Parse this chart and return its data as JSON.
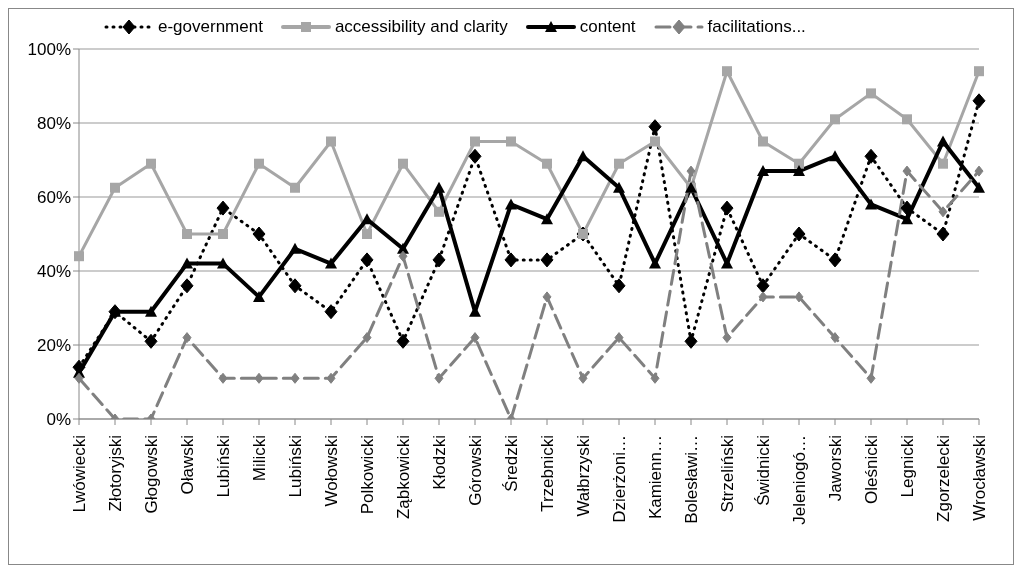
{
  "chart_data": {
    "type": "line",
    "categories": [
      "Lwówiecki",
      "Złotoryjski",
      "Głogowski",
      "Oławski",
      "Lubiński",
      "Milicki",
      "Lubiński",
      "Wołowski",
      "Polkowicki",
      "Ząbkowicki",
      "Kłodzki",
      "Górowski",
      "Średzki",
      "Trzebnicki",
      "Wałbrzyski",
      "Dzierżoni…",
      "Kamienn…",
      "Bolesławi…",
      "Strzeliński",
      "Świdnicki",
      "Jeleniogó…",
      "Jaworski",
      "Oleśnicki",
      "Legnicki",
      "Zgorzelecki",
      "Wrocławski"
    ],
    "series": [
      {
        "name": "e-government",
        "color": "#000000",
        "marker": "diamond",
        "line_style": "dotted",
        "values": [
          14,
          29,
          21,
          36,
          57,
          50,
          36,
          29,
          43,
          21,
          43,
          71,
          43,
          43,
          50,
          36,
          79,
          21,
          57,
          36,
          50,
          43,
          71,
          57,
          50,
          86
        ]
      },
      {
        "name": "accessibility and clarity",
        "color": "#a6a6a6",
        "marker": "square",
        "line_style": "solid",
        "values": [
          44,
          62.5,
          69,
          50,
          50,
          69,
          62.5,
          75,
          50,
          69,
          56,
          75,
          75,
          69,
          50,
          69,
          75,
          62.5,
          94,
          75,
          69,
          81,
          88,
          81,
          69,
          94
        ]
      },
      {
        "name": "content",
        "color": "#000000",
        "marker": "triangle",
        "line_style": "solid",
        "values": [
          12.5,
          29,
          29,
          42,
          42,
          33,
          46,
          42,
          54,
          46,
          62.5,
          29,
          58,
          54,
          71,
          62.5,
          42,
          62.5,
          42,
          67,
          67,
          71,
          58,
          54,
          75,
          62.5
        ]
      },
      {
        "name": "facilitations...",
        "color": "#808080",
        "marker": "diamond",
        "line_style": "dashed",
        "values": [
          11,
          0,
          0,
          22,
          11,
          11,
          11,
          11,
          22,
          44,
          11,
          22,
          0,
          33,
          11,
          22,
          11,
          67,
          22,
          33,
          33,
          22,
          11,
          67,
          56,
          67
        ]
      }
    ],
    "ylim": [
      0,
      100
    ],
    "yticks": [
      {
        "value": 0,
        "label": "0%"
      },
      {
        "value": 20,
        "label": "20%"
      },
      {
        "value": 40,
        "label": "40%"
      },
      {
        "value": 60,
        "label": "60%"
      },
      {
        "value": 80,
        "label": "80%"
      },
      {
        "value": 100,
        "label": "100%"
      }
    ],
    "grid": "y",
    "legend": "top"
  }
}
